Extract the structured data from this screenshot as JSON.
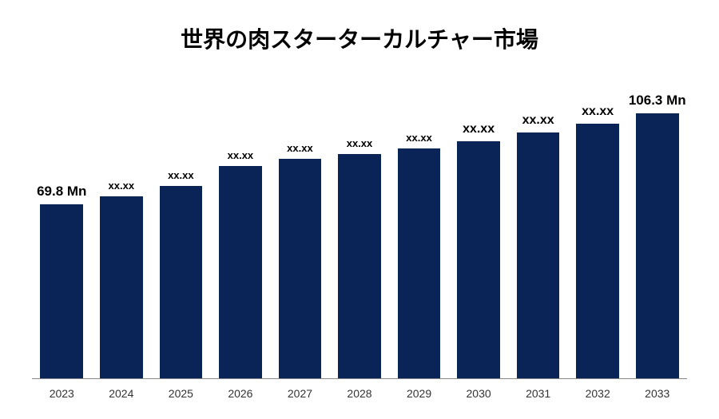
{
  "title": "世界の肉スターターカルチャー市場",
  "title_fontsize": 28,
  "chart": {
    "type": "bar",
    "background_color": "#ffffff",
    "bar_color": "#0b2457",
    "axis_color": "#888888",
    "bar_width_pct": 72,
    "ymax": 110,
    "categories": [
      "2023",
      "2024",
      "2025",
      "2026",
      "2027",
      "2028",
      "2029",
      "2030",
      "2031",
      "2032",
      "2033"
    ],
    "values": [
      69.8,
      73.0,
      77.0,
      85.0,
      88.0,
      90.0,
      92.0,
      95.0,
      98.5,
      102.0,
      106.3
    ],
    "value_labels": [
      "69.8 Mn",
      "xx.xx",
      "xx.xx",
      "xx.xx",
      "xx.xx",
      "xx.xx",
      "xx.xx",
      "xx.xx",
      "xx.xx",
      "xx.xx",
      "106.3 Mn"
    ],
    "label_fontsizes": [
      17,
      13,
      13,
      13,
      13,
      13,
      13,
      16,
      16,
      16,
      17
    ],
    "x_label_fontsize": 14,
    "label_color": "#000000"
  }
}
